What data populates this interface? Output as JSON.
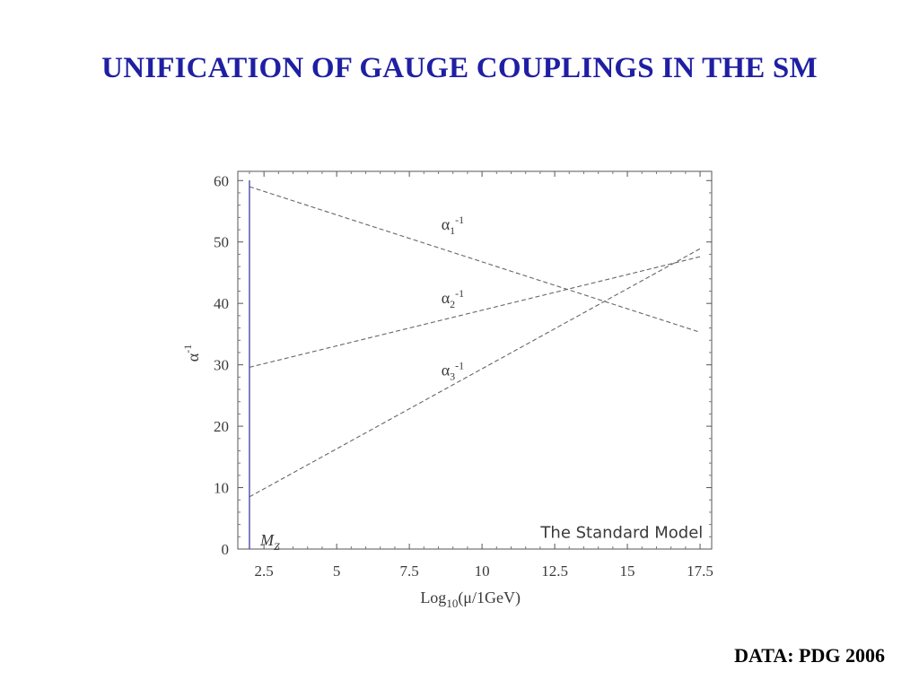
{
  "slide": {
    "title": "UNIFICATION OF GAUGE COUPLINGS IN THE SM",
    "footer": "DATA: PDG 2006",
    "title_color": "#1f1fa3"
  },
  "chart_data": {
    "type": "line",
    "xlabel": "Log10(μ/1GeV)",
    "ylabel": "α-1",
    "xlim": [
      1.6,
      17.9
    ],
    "ylim": [
      0,
      61.5
    ],
    "xticks": [
      2.5,
      5,
      7.5,
      10,
      12.5,
      15,
      17.5
    ],
    "xtick_labels": [
      "2.5",
      "5",
      "7.5",
      "10",
      "12.5",
      "15",
      "17.5"
    ],
    "yticks": [
      0,
      10,
      20,
      30,
      40,
      50,
      60
    ],
    "ytick_labels": [
      "0",
      "10",
      "20",
      "30",
      "40",
      "50",
      "60"
    ],
    "grid": false,
    "series": [
      {
        "name": "α1-1",
        "x": [
          2.0,
          17.5
        ],
        "y": [
          59.0,
          35.3
        ],
        "style": "dashed",
        "color": "#666666"
      },
      {
        "name": "α2-1",
        "x": [
          2.0,
          17.5
        ],
        "y": [
          29.6,
          47.6
        ],
        "style": "dashed",
        "color": "#666666"
      },
      {
        "name": "α3-1",
        "x": [
          2.0,
          17.5
        ],
        "y": [
          8.5,
          48.9
        ],
        "style": "dashed",
        "color": "#666666"
      }
    ],
    "vertical_line": {
      "x": 2.0,
      "label": "MZ",
      "color": "#4a4aaa"
    },
    "annotation": "The Standard Model"
  }
}
